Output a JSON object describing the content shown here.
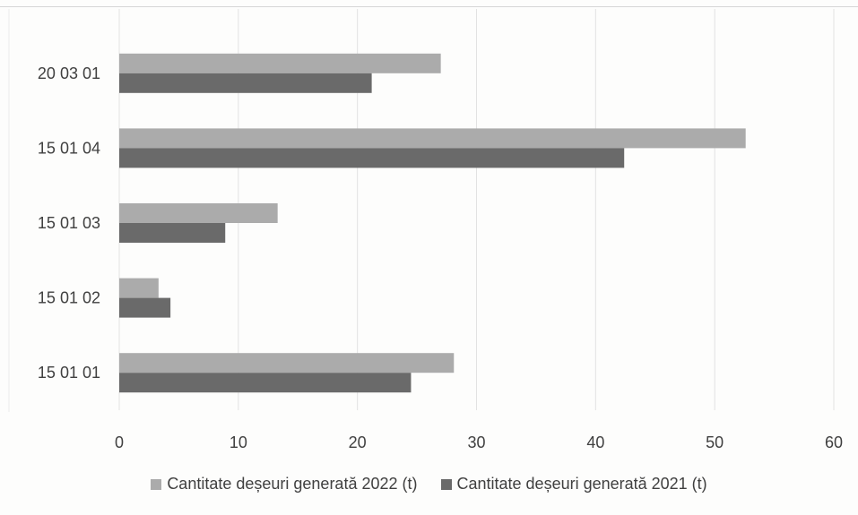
{
  "chart_data": {
    "type": "bar",
    "orientation": "horizontal",
    "categories": [
      "20 03 01",
      "15 01 04",
      "15 01 03",
      "15 01 02",
      "15 01 01"
    ],
    "series": [
      {
        "name": "Cantitate deșeuri generată 2022 (t)",
        "values": [
          27,
          52.6,
          13.3,
          3.3,
          28.1
        ],
        "color": "#ababab"
      },
      {
        "name": "Cantitate deșeuri generată 2021 (t)",
        "values": [
          21.2,
          42.4,
          8.9,
          4.3,
          24.5
        ],
        "color": "#6a6a6a"
      }
    ],
    "xlim": [
      0,
      60
    ],
    "xticks": [
      "0",
      "10",
      "20",
      "30",
      "40",
      "50",
      "60"
    ],
    "grid": "vertical",
    "legend": "bottom-center"
  }
}
